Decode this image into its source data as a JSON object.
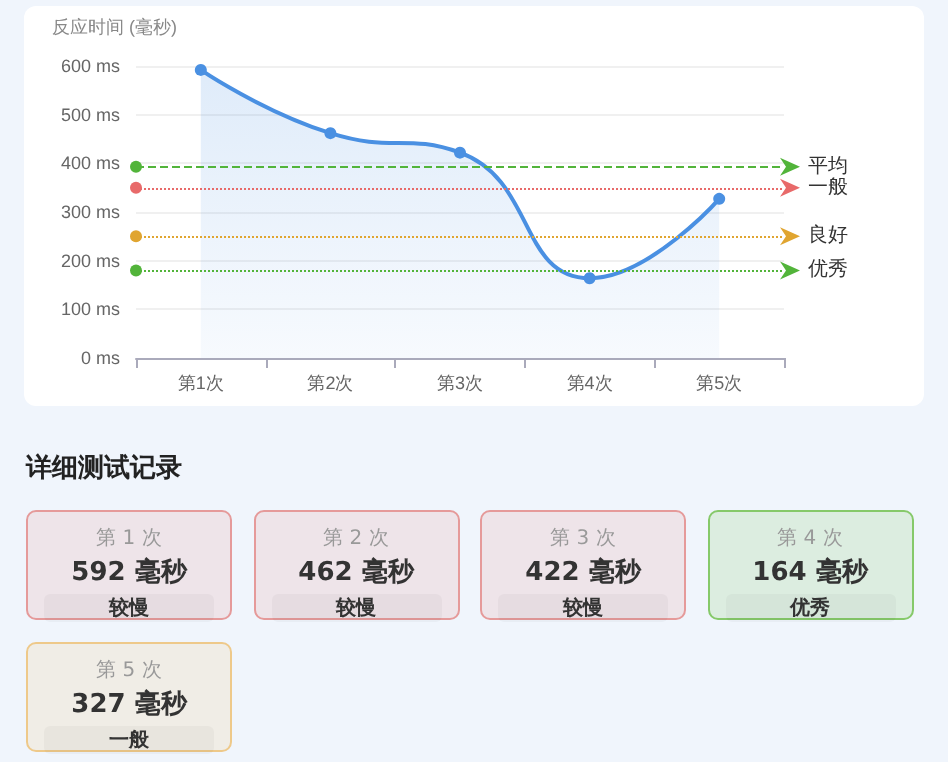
{
  "chart_data": [
    {
      "type": "area",
      "ylabel": "反应时间 (毫秒)",
      "categories": [
        "第1次",
        "第2次",
        "第3次",
        "第4次",
        "第5次"
      ],
      "series": [
        {
          "color": "#4a90e2",
          "values": [
            592,
            462,
            422,
            164,
            327
          ]
        }
      ],
      "ylim": [
        0,
        600
      ],
      "yticks": [
        {
          "value": 0,
          "label": "0 ms"
        },
        {
          "value": 100,
          "label": "100 ms"
        },
        {
          "value": 200,
          "label": "200 ms"
        },
        {
          "value": 300,
          "label": "300 ms"
        },
        {
          "value": 400,
          "label": "400 ms"
        },
        {
          "value": 500,
          "label": "500 ms"
        },
        {
          "value": 600,
          "label": "600 ms"
        }
      ],
      "grid": "y",
      "marker": "circle",
      "line_style": "solid",
      "ref_lines": [
        {
          "axis": "y",
          "value": 393,
          "label": "平均",
          "color": "#52b43a",
          "line_style": "dashed"
        },
        {
          "axis": "y",
          "value": 350,
          "label": "一般",
          "color": "#e86a6a",
          "line_style": "dotted"
        },
        {
          "axis": "y",
          "value": 250,
          "label": "良好",
          "color": "#e0a530",
          "line_style": "dotted"
        },
        {
          "axis": "y",
          "value": 180,
          "label": "优秀",
          "color": "#52b43a",
          "line_style": "dotted"
        }
      ]
    },
    {
      "type": "other",
      "title": "详细测试记录",
      "categories": [
        "第 1 次",
        "第 2 次",
        "第 3 次",
        "第 4 次",
        "第 5 次"
      ],
      "value_labels": [
        "592 毫秒",
        "462 毫秒",
        "422 毫秒",
        "164 毫秒",
        "327 毫秒"
      ],
      "annotations": [
        "较慢",
        "较慢",
        "较慢",
        "优秀",
        "一般"
      ],
      "colors": [
        "#e59a9a",
        "#e59a9a",
        "#e59a9a",
        "#86c96a",
        "#eec98a"
      ]
    }
  ]
}
